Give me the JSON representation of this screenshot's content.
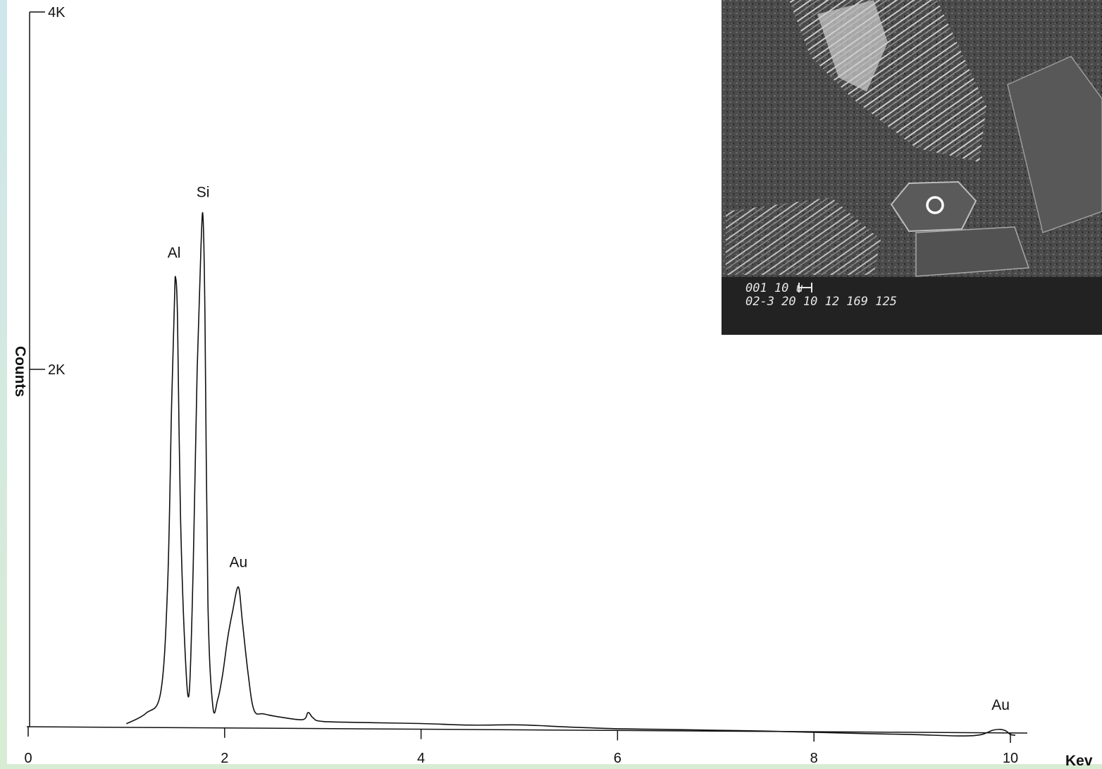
{
  "chart_data": {
    "type": "line",
    "xlabel": "Kev",
    "ylabel": "Counts",
    "xlim": [
      0,
      10
    ],
    "ylim": [
      0,
      4000
    ],
    "x_ticks": [
      {
        "value": 0,
        "label": "0"
      },
      {
        "value": 2,
        "label": "2"
      },
      {
        "value": 4,
        "label": "4"
      },
      {
        "value": 6,
        "label": "6"
      },
      {
        "value": 8,
        "label": "8"
      },
      {
        "value": 10,
        "label": "10"
      }
    ],
    "y_ticks": [
      {
        "value": 2000,
        "label": "2K"
      },
      {
        "value": 4000,
        "label": "4K"
      }
    ],
    "grid": false,
    "legend": "none",
    "series": [
      {
        "x": [
          1.0,
          1.2,
          1.35,
          1.42,
          1.46,
          1.49,
          1.5,
          1.52,
          1.55,
          1.6,
          1.64,
          1.68,
          1.72,
          1.76,
          1.78,
          1.8,
          1.83,
          1.88,
          1.93,
          1.98,
          2.03,
          2.08,
          2.14,
          2.18,
          2.24,
          2.3,
          2.4,
          2.6,
          2.8,
          2.85,
          2.9,
          3.0,
          3.5,
          4.0,
          4.5,
          5.0,
          5.5,
          6.0,
          6.5,
          7.0,
          7.5,
          8.0,
          8.5,
          9.0,
          9.5,
          9.7,
          9.82,
          9.9,
          9.96,
          10.0,
          10.05
        ],
        "y": [
          20,
          80,
          200,
          800,
          1800,
          2400,
          2520,
          2300,
          1200,
          400,
          200,
          900,
          2000,
          2700,
          2860,
          2300,
          700,
          120,
          160,
          300,
          500,
          650,
          790,
          600,
          300,
          100,
          80,
          60,
          50,
          90,
          60,
          40,
          35,
          32,
          25,
          28,
          18,
          10,
          8,
          5,
          2,
          -3,
          -8,
          -12,
          -18,
          -10,
          15,
          20,
          10,
          -8,
          -12
        ]
      }
    ],
    "annotations": [
      {
        "text": "Al",
        "x": 1.5,
        "y": 2520
      },
      {
        "text": "Si",
        "x": 1.78,
        "y": 2860
      },
      {
        "text": "Au",
        "x": 2.14,
        "y": 790
      },
      {
        "text": "Au",
        "x": 9.9,
        "y": 20
      }
    ],
    "inset": {
      "type": "SEM micrograph",
      "caption_line1": "001 10 u",
      "caption_line2": "02-3 20 10 12 169 125"
    }
  }
}
